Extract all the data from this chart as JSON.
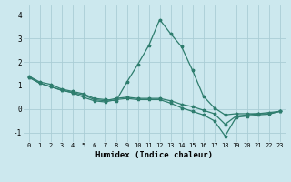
{
  "xlabel": "Humidex (Indice chaleur)",
  "ylabel": "",
  "bg_color": "#cce8ee",
  "grid_color": "#aacdd5",
  "line_color": "#2e7d6e",
  "xlim": [
    -0.5,
    23.5
  ],
  "ylim": [
    -1.4,
    4.4
  ],
  "yticks": [
    -1,
    0,
    1,
    2,
    3,
    4
  ],
  "xticks": [
    0,
    1,
    2,
    3,
    4,
    5,
    6,
    7,
    8,
    9,
    10,
    11,
    12,
    13,
    14,
    15,
    16,
    17,
    18,
    19,
    20,
    21,
    22,
    23
  ],
  "line1_x": [
    0,
    1,
    2,
    3,
    4,
    5,
    6,
    7,
    8,
    9,
    10,
    11,
    12,
    13,
    14,
    15,
    16,
    17,
    18,
    19,
    20,
    21,
    22,
    23
  ],
  "line1_y": [
    1.4,
    1.15,
    1.05,
    0.85,
    0.75,
    0.65,
    0.45,
    0.4,
    0.35,
    1.15,
    1.9,
    2.7,
    3.8,
    3.2,
    2.65,
    1.65,
    0.55,
    0.05,
    -0.25,
    -0.2,
    -0.2,
    -0.2,
    -0.15,
    -0.1
  ],
  "line2_x": [
    0,
    1,
    2,
    3,
    4,
    5,
    6,
    7,
    8,
    9,
    10,
    11,
    12,
    13,
    14,
    15,
    16,
    17,
    18,
    19,
    20,
    21,
    22,
    23
  ],
  "line2_y": [
    1.35,
    1.1,
    0.95,
    0.8,
    0.7,
    0.6,
    0.4,
    0.35,
    0.45,
    0.5,
    0.45,
    0.45,
    0.45,
    0.35,
    0.2,
    0.1,
    -0.05,
    -0.2,
    -0.65,
    -0.3,
    -0.25,
    -0.2,
    -0.2,
    -0.1
  ],
  "line3_x": [
    0,
    1,
    2,
    3,
    4,
    5,
    6,
    7,
    8,
    9,
    10,
    11,
    12,
    13,
    14,
    15,
    16,
    17,
    18,
    19,
    20,
    21,
    22,
    23
  ],
  "line3_y": [
    1.35,
    1.1,
    0.95,
    0.8,
    0.7,
    0.5,
    0.35,
    0.3,
    0.4,
    0.45,
    0.4,
    0.4,
    0.4,
    0.25,
    0.05,
    -0.1,
    -0.25,
    -0.5,
    -1.15,
    -0.35,
    -0.3,
    -0.25,
    -0.22,
    -0.1
  ]
}
